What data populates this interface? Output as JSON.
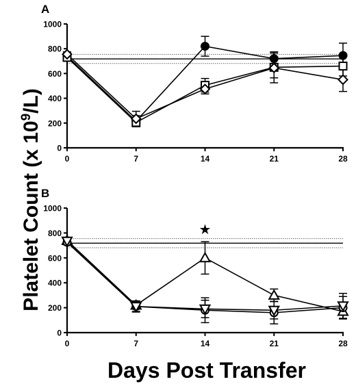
{
  "figure": {
    "ylabel_main": "Platelet Count (x 10",
    "ylabel_sup": "9",
    "ylabel_tail": "/L)",
    "xlabel": "Days Post Transfer"
  },
  "chart_data": [
    {
      "type": "line",
      "panel_label": "A",
      "x": [
        0,
        7,
        14,
        21,
        28
      ],
      "x_ticks": [
        "0",
        "7",
        "14",
        "21",
        "28"
      ],
      "ylim": [
        0,
        1000
      ],
      "y_ticks": [
        "0",
        "200",
        "400",
        "600",
        "800",
        "1000"
      ],
      "reference_lines": {
        "mean": 718,
        "upper": 755,
        "lower": 681
      },
      "annotations": [],
      "series": [
        {
          "marker": "filled-circle",
          "values": [
            740,
            215,
            820,
            720,
            745
          ],
          "errors": [
            25,
            45,
            80,
            55,
            100
          ]
        },
        {
          "marker": "open-square",
          "values": [
            730,
            205,
            505,
            650,
            660
          ],
          "errors": [
            25,
            35,
            55,
            85,
            80
          ]
        },
        {
          "marker": "open-diamond",
          "values": [
            755,
            235,
            475,
            645,
            550
          ],
          "errors": [
            20,
            60,
            40,
            120,
            95
          ]
        }
      ]
    },
    {
      "type": "line",
      "panel_label": "B",
      "x": [
        0,
        7,
        14,
        21,
        28
      ],
      "x_ticks": [
        "0",
        "7",
        "14",
        "21",
        "28"
      ],
      "ylim": [
        0,
        1000
      ],
      "y_ticks": [
        "0",
        "200",
        "400",
        "600",
        "800",
        "1000"
      ],
      "reference_lines": {
        "mean": 718,
        "upper": 755,
        "lower": 681
      },
      "annotations": [
        {
          "x": 14,
          "y": 830,
          "text": "★"
        }
      ],
      "series": [
        {
          "marker": "open-triangle-up",
          "values": [
            740,
            220,
            600,
            300,
            170
          ],
          "errors": [
            20,
            30,
            130,
            50,
            60
          ]
        },
        {
          "marker": "open-circle",
          "values": [
            725,
            210,
            180,
            160,
            200
          ],
          "errors": [
            20,
            40,
            100,
            90,
            90
          ]
        },
        {
          "marker": "open-triangle-down",
          "values": [
            735,
            210,
            190,
            180,
            215
          ],
          "errors": [
            25,
            45,
            70,
            70,
            100
          ]
        }
      ]
    }
  ]
}
